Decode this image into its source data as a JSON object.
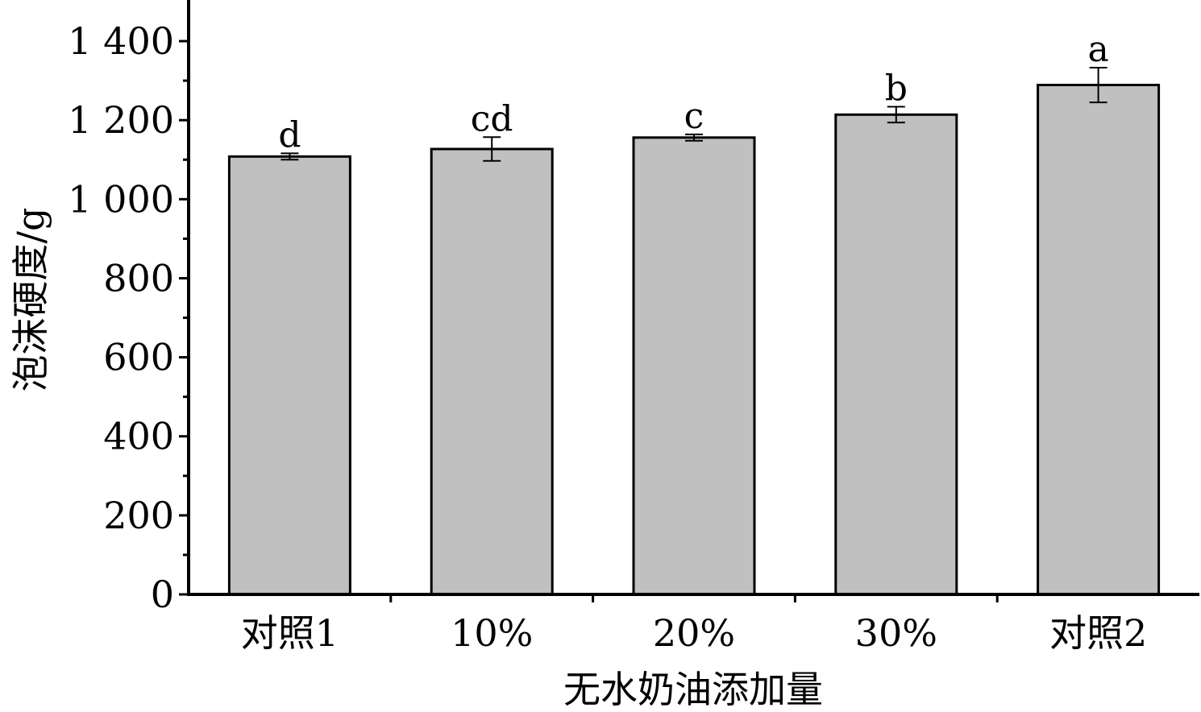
{
  "chart_data": {
    "type": "bar",
    "categories": [
      "对照1",
      "10%",
      "20%",
      "30%",
      "对照2"
    ],
    "values": [
      1108,
      1127,
      1156,
      1214,
      1289
    ],
    "errors": [
      8,
      30,
      8,
      20,
      44
    ],
    "significance_labels": [
      "d",
      "cd",
      "c",
      "b",
      "a"
    ],
    "xlabel": "无水奶油添加量",
    "ylabel": "泡沫硬度/g",
    "ylim": [
      0,
      1500
    ],
    "yticks": [
      0,
      200,
      400,
      600,
      800,
      1000,
      1200,
      1400
    ],
    "ytick_labels": [
      "0",
      "200",
      "400",
      "600",
      "800",
      "1 000",
      "1 200",
      "1 400"
    ],
    "grid": false,
    "legend": "none",
    "colors": {
      "bar_fill": "#c0c0c0",
      "bar_stroke": "#000000",
      "axis": "#000000"
    }
  }
}
